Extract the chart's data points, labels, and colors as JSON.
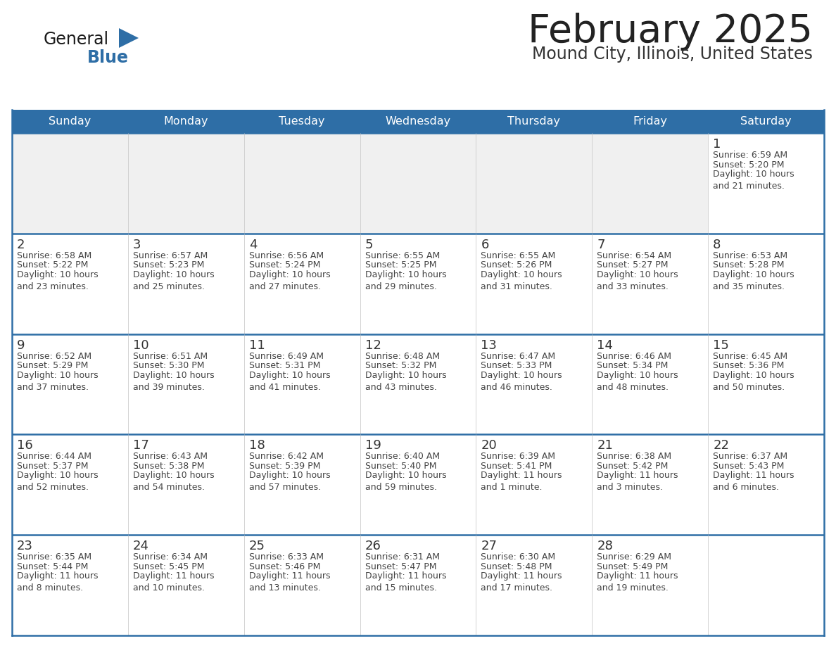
{
  "title": "February 2025",
  "subtitle": "Mound City, Illinois, United States",
  "days_of_week": [
    "Sunday",
    "Monday",
    "Tuesday",
    "Wednesday",
    "Thursday",
    "Friday",
    "Saturday"
  ],
  "header_bg": "#2E6EA6",
  "header_text": "#FFFFFF",
  "cell_bg": "#FFFFFF",
  "cell_bg_alt": "#F0F0F0",
  "border_color": "#2E6EA6",
  "text_color": "#444444",
  "day_num_color": "#333333",
  "logo_general_color": "#1a1a1a",
  "logo_blue_color": "#2E6EA6",
  "calendar_data": [
    [
      null,
      null,
      null,
      null,
      null,
      null,
      {
        "day": 1,
        "sunrise": "6:59 AM",
        "sunset": "5:20 PM",
        "daylight": "10 hours\nand 21 minutes."
      }
    ],
    [
      {
        "day": 2,
        "sunrise": "6:58 AM",
        "sunset": "5:22 PM",
        "daylight": "10 hours\nand 23 minutes."
      },
      {
        "day": 3,
        "sunrise": "6:57 AM",
        "sunset": "5:23 PM",
        "daylight": "10 hours\nand 25 minutes."
      },
      {
        "day": 4,
        "sunrise": "6:56 AM",
        "sunset": "5:24 PM",
        "daylight": "10 hours\nand 27 minutes."
      },
      {
        "day": 5,
        "sunrise": "6:55 AM",
        "sunset": "5:25 PM",
        "daylight": "10 hours\nand 29 minutes."
      },
      {
        "day": 6,
        "sunrise": "6:55 AM",
        "sunset": "5:26 PM",
        "daylight": "10 hours\nand 31 minutes."
      },
      {
        "day": 7,
        "sunrise": "6:54 AM",
        "sunset": "5:27 PM",
        "daylight": "10 hours\nand 33 minutes."
      },
      {
        "day": 8,
        "sunrise": "6:53 AM",
        "sunset": "5:28 PM",
        "daylight": "10 hours\nand 35 minutes."
      }
    ],
    [
      {
        "day": 9,
        "sunrise": "6:52 AM",
        "sunset": "5:29 PM",
        "daylight": "10 hours\nand 37 minutes."
      },
      {
        "day": 10,
        "sunrise": "6:51 AM",
        "sunset": "5:30 PM",
        "daylight": "10 hours\nand 39 minutes."
      },
      {
        "day": 11,
        "sunrise": "6:49 AM",
        "sunset": "5:31 PM",
        "daylight": "10 hours\nand 41 minutes."
      },
      {
        "day": 12,
        "sunrise": "6:48 AM",
        "sunset": "5:32 PM",
        "daylight": "10 hours\nand 43 minutes."
      },
      {
        "day": 13,
        "sunrise": "6:47 AM",
        "sunset": "5:33 PM",
        "daylight": "10 hours\nand 46 minutes."
      },
      {
        "day": 14,
        "sunrise": "6:46 AM",
        "sunset": "5:34 PM",
        "daylight": "10 hours\nand 48 minutes."
      },
      {
        "day": 15,
        "sunrise": "6:45 AM",
        "sunset": "5:36 PM",
        "daylight": "10 hours\nand 50 minutes."
      }
    ],
    [
      {
        "day": 16,
        "sunrise": "6:44 AM",
        "sunset": "5:37 PM",
        "daylight": "10 hours\nand 52 minutes."
      },
      {
        "day": 17,
        "sunrise": "6:43 AM",
        "sunset": "5:38 PM",
        "daylight": "10 hours\nand 54 minutes."
      },
      {
        "day": 18,
        "sunrise": "6:42 AM",
        "sunset": "5:39 PM",
        "daylight": "10 hours\nand 57 minutes."
      },
      {
        "day": 19,
        "sunrise": "6:40 AM",
        "sunset": "5:40 PM",
        "daylight": "10 hours\nand 59 minutes."
      },
      {
        "day": 20,
        "sunrise": "6:39 AM",
        "sunset": "5:41 PM",
        "daylight": "11 hours\nand 1 minute."
      },
      {
        "day": 21,
        "sunrise": "6:38 AM",
        "sunset": "5:42 PM",
        "daylight": "11 hours\nand 3 minutes."
      },
      {
        "day": 22,
        "sunrise": "6:37 AM",
        "sunset": "5:43 PM",
        "daylight": "11 hours\nand 6 minutes."
      }
    ],
    [
      {
        "day": 23,
        "sunrise": "6:35 AM",
        "sunset": "5:44 PM",
        "daylight": "11 hours\nand 8 minutes."
      },
      {
        "day": 24,
        "sunrise": "6:34 AM",
        "sunset": "5:45 PM",
        "daylight": "11 hours\nand 10 minutes."
      },
      {
        "day": 25,
        "sunrise": "6:33 AM",
        "sunset": "5:46 PM",
        "daylight": "11 hours\nand 13 minutes."
      },
      {
        "day": 26,
        "sunrise": "6:31 AM",
        "sunset": "5:47 PM",
        "daylight": "11 hours\nand 15 minutes."
      },
      {
        "day": 27,
        "sunrise": "6:30 AM",
        "sunset": "5:48 PM",
        "daylight": "11 hours\nand 17 minutes."
      },
      {
        "day": 28,
        "sunrise": "6:29 AM",
        "sunset": "5:49 PM",
        "daylight": "11 hours\nand 19 minutes."
      },
      null
    ]
  ]
}
